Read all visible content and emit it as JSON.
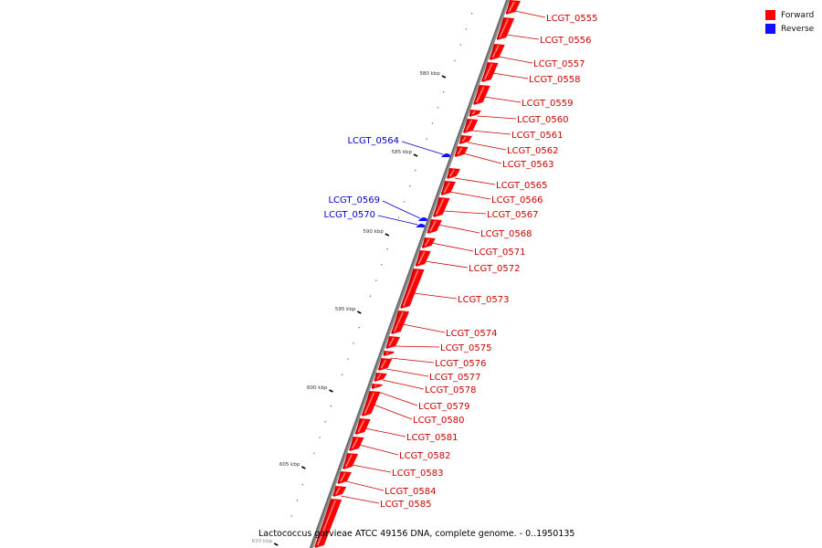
{
  "legend": [
    {
      "label": "Forward",
      "color": "#ff0000"
    },
    {
      "label": "Reverse",
      "color": "#1010ff"
    }
  ],
  "caption": "Lactococcus garvieae ATCC 49156 DNA, complete genome. - 0..1950135",
  "scale_labels": [
    "580 kbp",
    "585 kbp",
    "590 kbp",
    "595 kbp",
    "600 kbp",
    "605 kbp",
    "610 kbp"
  ],
  "forward_label_color": "#cc0000",
  "reverse_label_color": "#0000cc",
  "forward_genes": [
    "LCGT_0555",
    "LCGT_0556",
    "LCGT_0557",
    "LCGT_0558",
    "LCGT_0559",
    "LCGT_0560",
    "LCGT_0561",
    "LCGT_0562",
    "LCGT_0563",
    "LCGT_0565",
    "LCGT_0566",
    "LCGT_0567",
    "LCGT_0568",
    "LCGT_0571",
    "LCGT_0572",
    "LCGT_0573",
    "LCGT_0574",
    "LCGT_0575",
    "LCGT_0576",
    "LCGT_0577",
    "LCGT_0578",
    "LCGT_0579",
    "LCGT_0580",
    "LCGT_0581",
    "LCGT_0582",
    "LCGT_0583",
    "LCGT_0584",
    "LCGT_0585"
  ],
  "reverse_genes": [
    "LCGT_0564",
    "LCGT_0569",
    "LCGT_0570"
  ]
}
